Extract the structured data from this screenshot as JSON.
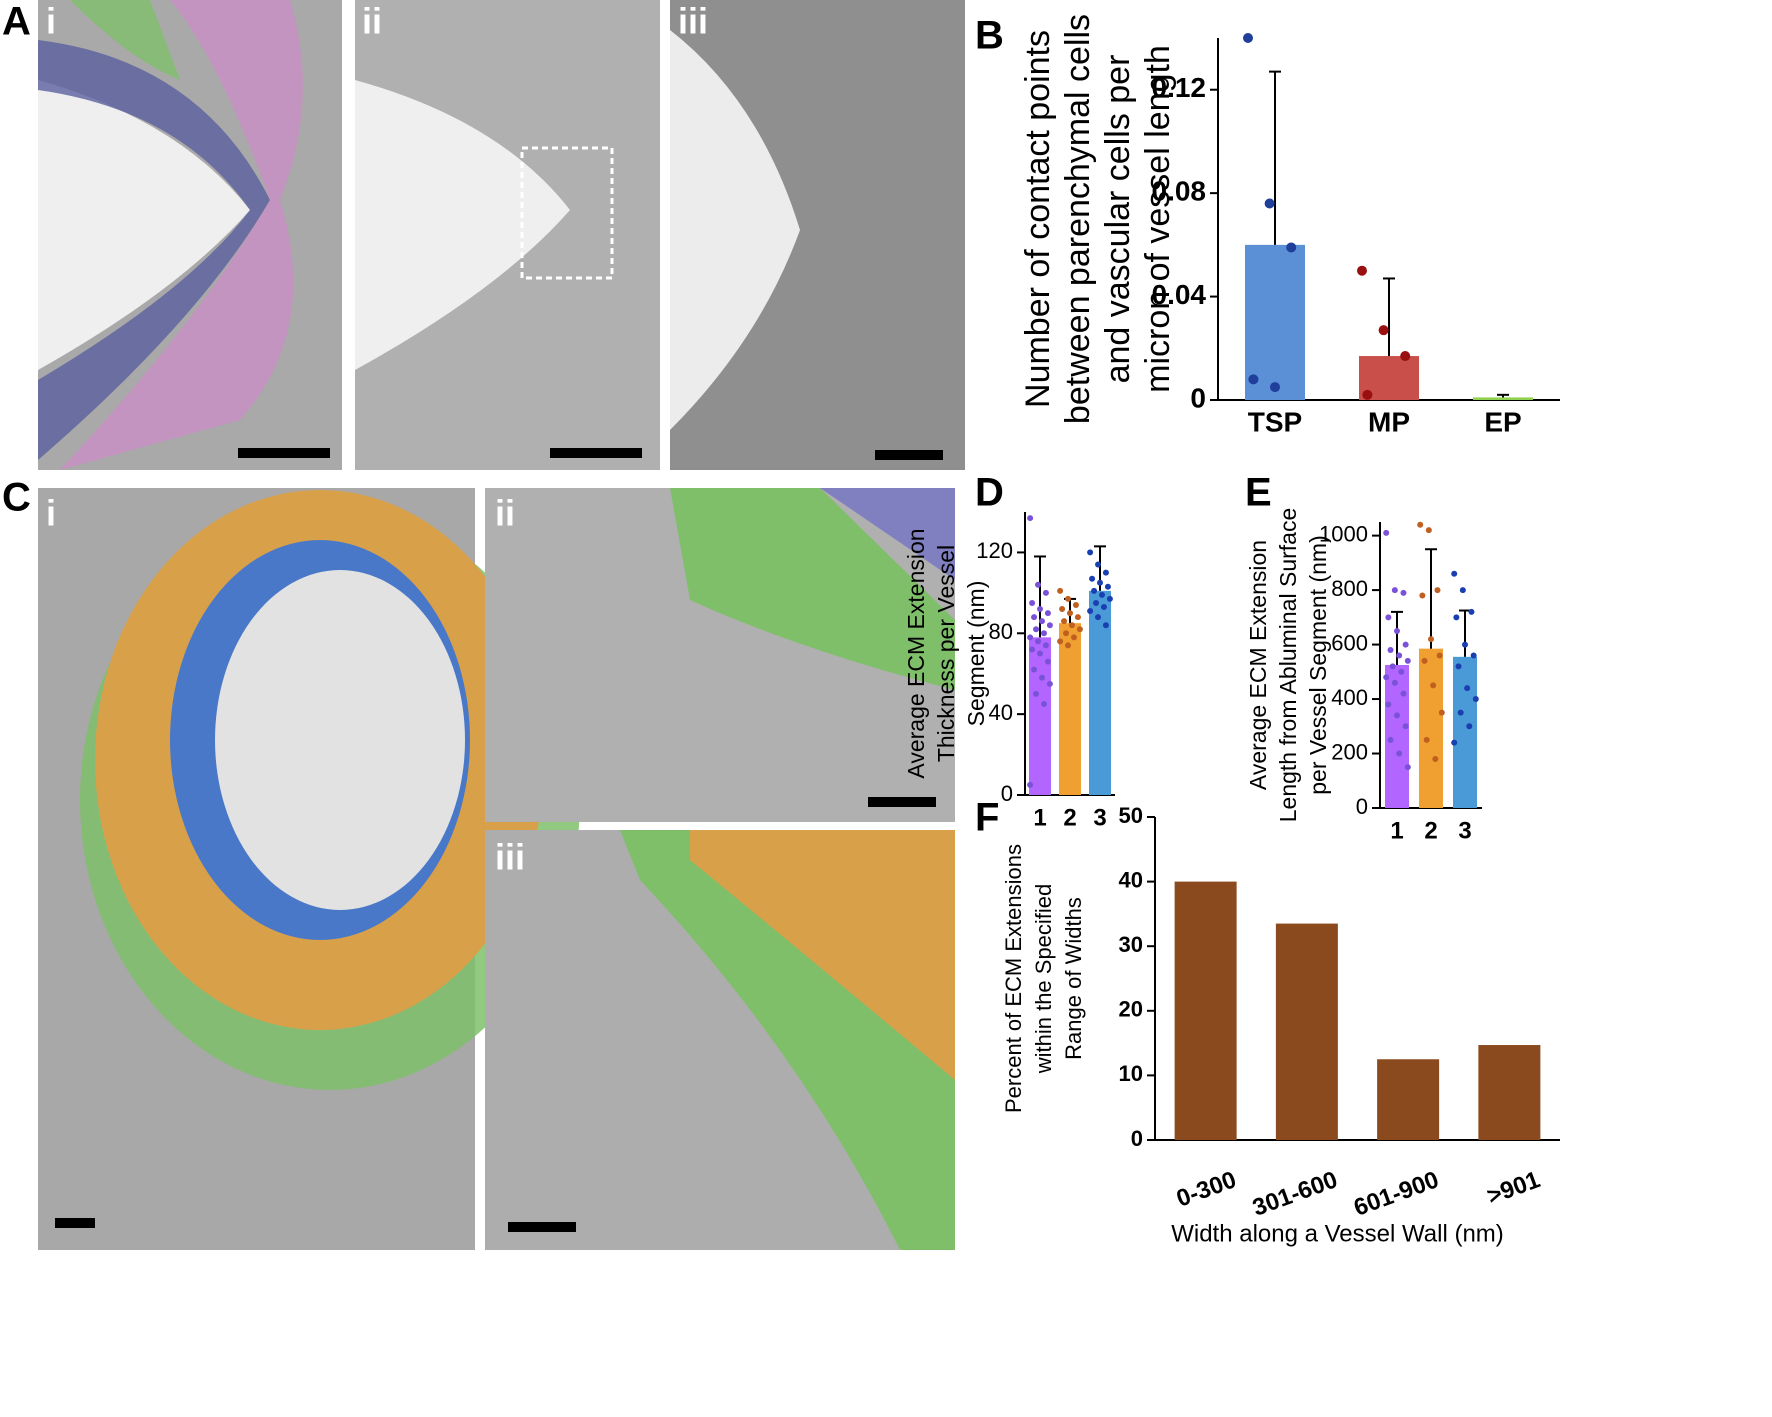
{
  "panel_labels": [
    "A",
    "i",
    "ii",
    "iii",
    "B",
    "C",
    "i",
    "ii",
    "iii",
    "D",
    "E",
    "F"
  ],
  "chart_data": [
    {
      "type": "bar",
      "ylabel": [
        "Number of contact points",
        "between parenchymal cells",
        "and vascular cells per",
        "micron of vessel length"
      ],
      "categories": [
        "TSP",
        "MP",
        "EP"
      ],
      "values": [
        0.06,
        0.017,
        0.001
      ],
      "errors": [
        0.067,
        0.03,
        0.001
      ],
      "colors": [
        "#5b8fd6",
        "#c9504a",
        "#8fd14f"
      ],
      "point_colors": [
        "#1f3f9a",
        "#9a1010",
        "#4a9a20"
      ],
      "points": [
        [
          0.14,
          0.076,
          0.059,
          0.008,
          0.005
        ],
        [
          0.05,
          0.027,
          0.017,
          0.002
        ],
        []
      ],
      "ylim": [
        0,
        0.14
      ],
      "yticks": [
        0,
        0.04,
        0.08,
        0.12
      ]
    },
    {
      "type": "bar",
      "ylabel": [
        "Average ECM Extension",
        "Thickness per Vessel",
        "Segment (nm)"
      ],
      "categories": [
        "1",
        "2",
        "3"
      ],
      "values": [
        78,
        85,
        101
      ],
      "errors": [
        40,
        12,
        22
      ],
      "colors": [
        "#b266ff",
        "#f0a030",
        "#4a9ad8"
      ],
      "point_colors": [
        "#7a52d8",
        "#c06020",
        "#1a3fb0"
      ],
      "points": [
        [
          137,
          104,
          100,
          95,
          92,
          90,
          88,
          86,
          84,
          82,
          80,
          78,
          76,
          74,
          72,
          70,
          66,
          62,
          58,
          55,
          50,
          45,
          5
        ],
        [
          101,
          97,
          94,
          92,
          90,
          88,
          86,
          84,
          82,
          80,
          78,
          76,
          74
        ],
        [
          120,
          114,
          110,
          107,
          105,
          103,
          101,
          99,
          97,
          95,
          93,
          91,
          88,
          84
        ]
      ],
      "ylim": [
        0,
        140
      ],
      "yticks": [
        0,
        40,
        80,
        120
      ]
    },
    {
      "type": "bar",
      "ylabel": [
        "Average ECM Extension",
        "Length from Abluminal Surface",
        "per Vessel Segment (nm)"
      ],
      "categories": [
        "1",
        "2",
        "3"
      ],
      "values": [
        525,
        585,
        555
      ],
      "errors": [
        195,
        365,
        170
      ],
      "colors": [
        "#b266ff",
        "#f0a030",
        "#4a9ad8"
      ],
      "point_colors": [
        "#7a52d8",
        "#c06020",
        "#1a3fb0"
      ],
      "points": [
        [
          1010,
          800,
          790,
          700,
          650,
          600,
          580,
          560,
          540,
          520,
          500,
          480,
          460,
          420,
          380,
          340,
          300,
          250,
          200,
          150
        ],
        [
          1040,
          1020,
          800,
          780,
          620,
          560,
          540,
          450,
          350,
          250,
          180
        ],
        [
          860,
          800,
          720,
          700,
          600,
          560,
          520,
          440,
          400,
          350,
          300,
          240
        ]
      ],
      "ylim": [
        0,
        1050
      ],
      "yticks": [
        0,
        200,
        400,
        600,
        800,
        1000
      ]
    },
    {
      "type": "bar",
      "ylabel": [
        "Percent of ECM Extensions",
        "within the Specified",
        "Range of Widths"
      ],
      "xlabel": "Width along a Vessel Wall (nm)",
      "categories": [
        "0-300",
        "301-600",
        "601-900",
        ">901"
      ],
      "values": [
        40,
        33.5,
        12.5,
        14.7
      ],
      "colors": [
        "#8b4a1e",
        "#8b4a1e",
        "#8b4a1e",
        "#8b4a1e"
      ],
      "ylim": [
        0,
        50
      ],
      "yticks": [
        0,
        10,
        20,
        30,
        40,
        50
      ]
    }
  ]
}
